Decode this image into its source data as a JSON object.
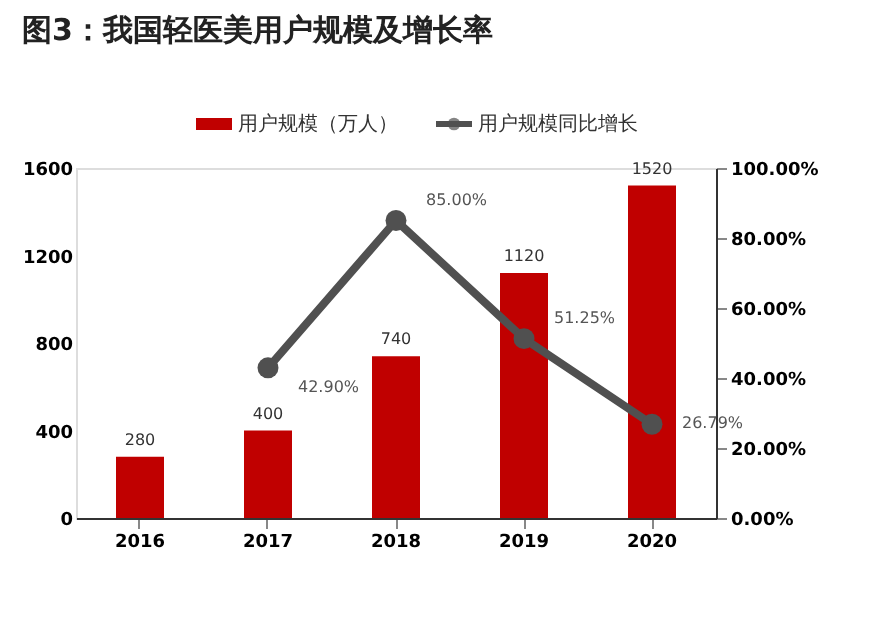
{
  "chart_data": {
    "type": "bar",
    "title": "图3：我国轻医美用户规模及增长率",
    "categories": [
      "2016",
      "2017",
      "2018",
      "2019",
      "2020"
    ],
    "series": [
      {
        "name": "用户规模（万人）",
        "color": "#c00000",
        "values": [
          280,
          400,
          740,
          1120,
          1520
        ],
        "value_labels": [
          "280",
          "400",
          "740",
          "1120",
          "1520"
        ]
      },
      {
        "name": "用户规模同比增长",
        "type": "line",
        "axis": "y2",
        "color": "#505050",
        "marker": "circle",
        "values": [
          null,
          42.9,
          85.0,
          51.25,
          26.79
        ],
        "value_labels": [
          null,
          "42.90%",
          "85.00%",
          "51.25%",
          "26.79%"
        ]
      }
    ],
    "ylim": [
      0,
      1600
    ],
    "yticks": [
      0,
      400,
      800,
      1200,
      1600
    ],
    "y2lim": [
      0,
      100
    ],
    "y2ticks": [
      {
        "value": 0,
        "label": "0.00%"
      },
      {
        "value": 20,
        "label": "20.00%"
      },
      {
        "value": 40,
        "label": "40.00%"
      },
      {
        "value": 60,
        "label": "60.00%"
      },
      {
        "value": 80,
        "label": "80.00%"
      },
      {
        "value": 100,
        "label": "100.00%"
      }
    ],
    "grid": false,
    "legend": "top"
  }
}
